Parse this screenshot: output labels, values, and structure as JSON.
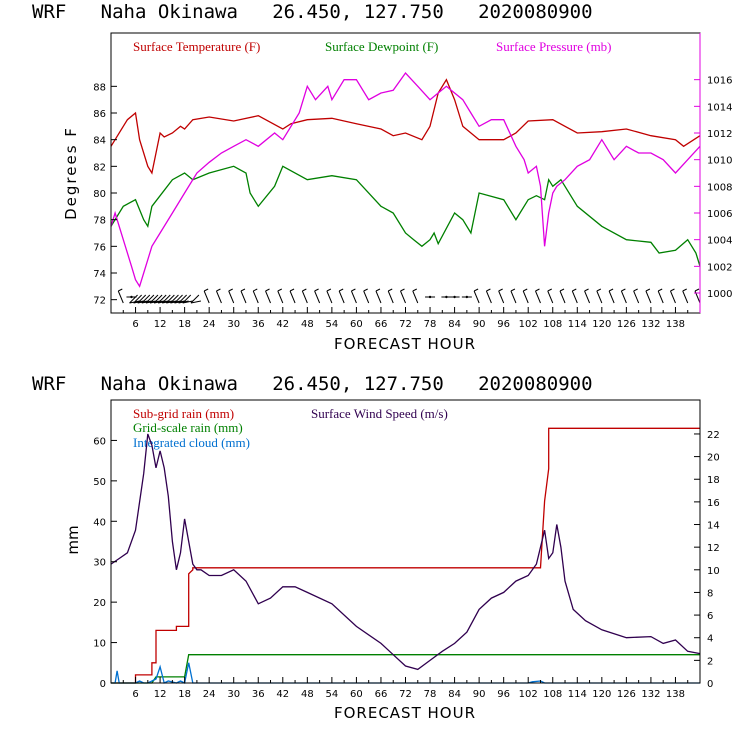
{
  "chart_data": [
    {
      "type": "line",
      "title": "WRF   Naha Okinawa   26.450, 127.750   2020080900",
      "xlabel": "FORECAST HOUR",
      "ylabel": "Degrees F",
      "xlim": [
        0,
        144
      ],
      "ylim": [
        71,
        92
      ],
      "y2lim": [
        998.5,
        1019.5
      ],
      "xticks": [
        6,
        12,
        18,
        24,
        30,
        36,
        42,
        48,
        54,
        60,
        66,
        72,
        78,
        84,
        90,
        96,
        102,
        108,
        114,
        120,
        126,
        132,
        138
      ],
      "yticks": [
        72,
        74,
        76,
        78,
        80,
        82,
        84,
        86,
        88
      ],
      "y2ticks": [
        1000,
        1002,
        1004,
        1006,
        1008,
        1010,
        1012,
        1014,
        1016
      ],
      "legend": [
        {
          "label": "Surface Temperature (F)",
          "color": "#c00000"
        },
        {
          "label": "Surface Dewpoint (F)",
          "color": "#008000"
        },
        {
          "label": "Surface Pressure (mb)",
          "color": "#e000e0"
        }
      ],
      "series": [
        {
          "name": "Surface Temperature (F)",
          "axis": "left",
          "color": "#c00000",
          "x": [
            0,
            3,
            4,
            6,
            7,
            9,
            10,
            12,
            13,
            15,
            17,
            18,
            20,
            24,
            30,
            36,
            42,
            44,
            48,
            54,
            60,
            66,
            69,
            72,
            76,
            78,
            80,
            82,
            84,
            86,
            90,
            96,
            99,
            102,
            108,
            114,
            120,
            126,
            132,
            138,
            140,
            144
          ],
          "y": [
            83.5,
            85,
            85.5,
            86,
            84,
            82,
            81.5,
            84.5,
            84.2,
            84.5,
            85,
            84.8,
            85.5,
            85.7,
            85.4,
            85.8,
            84.8,
            85.2,
            85.5,
            85.6,
            85.2,
            84.8,
            84.3,
            84.5,
            84,
            85,
            87.5,
            88.5,
            87,
            85,
            84,
            84,
            84.5,
            85.4,
            85.5,
            84.5,
            84.6,
            84.8,
            84.3,
            84,
            83.5,
            84.3
          ]
        },
        {
          "name": "Surface Dewpoint (F)",
          "axis": "left",
          "color": "#008000",
          "x": [
            0,
            3,
            6,
            8,
            9,
            10,
            12,
            15,
            18,
            20,
            24,
            30,
            33,
            34,
            36,
            40,
            42,
            48,
            54,
            60,
            66,
            69,
            72,
            74,
            76,
            78,
            79,
            80,
            84,
            86,
            88,
            90,
            96,
            99,
            100,
            102,
            104,
            106,
            107,
            108,
            110,
            114,
            120,
            126,
            132,
            134,
            138,
            141,
            143,
            144
          ],
          "y": [
            77.5,
            79,
            79.5,
            78,
            77.5,
            79,
            79.8,
            81,
            81.5,
            81,
            81.5,
            82,
            81.5,
            80,
            79,
            80.5,
            82,
            81,
            81.3,
            81,
            79,
            78.5,
            77,
            76.5,
            76,
            76.5,
            77,
            76.2,
            78.5,
            78,
            77,
            80,
            79.5,
            78,
            78.5,
            79.5,
            79.8,
            79.5,
            81,
            80.5,
            81,
            79,
            77.5,
            76.5,
            76.3,
            75.5,
            75.7,
            76.5,
            75.5,
            74.5
          ]
        },
        {
          "name": "Surface Pressure (mb)",
          "axis": "right",
          "color": "#e000e0",
          "x": [
            0,
            1,
            3,
            5,
            6,
            7,
            8,
            9,
            10,
            12,
            15,
            18,
            21,
            24,
            27,
            30,
            33,
            36,
            40,
            42,
            46,
            48,
            50,
            53,
            54,
            57,
            60,
            63,
            66,
            69,
            72,
            75,
            78,
            80,
            82,
            84,
            86,
            88,
            90,
            93,
            96,
            99,
            101,
            102,
            104,
            105,
            106,
            107,
            108,
            109,
            111,
            114,
            117,
            120,
            123,
            126,
            129,
            132,
            135,
            138,
            141,
            144
          ],
          "y": [
            1005,
            1006,
            1004,
            1002,
            1001,
            1000.5,
            1001.5,
            1002.5,
            1003.5,
            1004.5,
            1006,
            1007.5,
            1009,
            1009.8,
            1010.5,
            1011,
            1011.5,
            1011,
            1012,
            1011.5,
            1013.5,
            1015.5,
            1014.5,
            1015.5,
            1014.5,
            1016,
            1016,
            1014.5,
            1015,
            1015.2,
            1016.5,
            1015.5,
            1014.5,
            1015,
            1015.5,
            1015,
            1014.5,
            1013.5,
            1012.5,
            1013,
            1013,
            1011,
            1010,
            1009,
            1009.5,
            1008,
            1003.5,
            1006,
            1007.5,
            1008,
            1008.5,
            1009.5,
            1010,
            1011.5,
            1010,
            1011,
            1010.5,
            1010.5,
            1010,
            1009,
            1010,
            1011
          ]
        }
      ]
    },
    {
      "type": "line",
      "title": "WRF   Naha Okinawa   26.450, 127.750   2020080900",
      "xlabel": "FORECAST HOUR",
      "ylabel": "mm",
      "xlim": [
        0,
        144
      ],
      "ylim": [
        0,
        70
      ],
      "y2lim": [
        0,
        25
      ],
      "xticks": [
        6,
        12,
        18,
        24,
        30,
        36,
        42,
        48,
        54,
        60,
        66,
        72,
        78,
        84,
        90,
        96,
        102,
        108,
        114,
        120,
        126,
        132,
        138
      ],
      "yticks": [
        0,
        10,
        20,
        30,
        40,
        50,
        60
      ],
      "y2ticks": [
        0,
        2,
        4,
        6,
        8,
        10,
        12,
        14,
        16,
        18,
        20,
        22
      ],
      "legend": [
        {
          "label": "Sub-grid rain (mm)",
          "color": "#c00000"
        },
        {
          "label": "Surface Wind Speed (m/s)",
          "color": "#30004f"
        },
        {
          "label": "Grid-scale rain (mm)",
          "color": "#008000"
        },
        {
          "label": "Integrated cloud (mm)",
          "color": "#0070d0"
        }
      ],
      "series": [
        {
          "name": "Sub-grid rain (mm)",
          "axis": "left",
          "color": "#c00000",
          "x": [
            0,
            6,
            6,
            10,
            10,
            11,
            11,
            16,
            16,
            19,
            19,
            20,
            20,
            105,
            106,
            107,
            107,
            144
          ],
          "y": [
            0,
            0,
            2,
            2,
            5,
            5,
            13,
            13,
            14,
            14,
            27,
            28,
            28.5,
            28.5,
            45,
            53,
            63,
            63
          ]
        },
        {
          "name": "Grid-scale rain (mm)",
          "axis": "left",
          "color": "#008000",
          "x": [
            0,
            10,
            11,
            18,
            19,
            144
          ],
          "y": [
            0,
            0,
            1.5,
            1.5,
            7,
            7
          ]
        },
        {
          "name": "Integrated cloud (mm)",
          "axis": "left",
          "color": "#0070d0",
          "x": [
            0,
            1,
            1.5,
            2,
            6,
            7,
            8,
            9,
            11,
            12,
            13,
            14,
            16,
            17,
            18,
            19,
            20,
            50,
            102,
            103,
            105,
            106,
            144
          ],
          "y": [
            0,
            0,
            3,
            0,
            0,
            0.5,
            0,
            0,
            1,
            4,
            0,
            0.5,
            0,
            0.5,
            0,
            5,
            0,
            0,
            0,
            0.3,
            0.5,
            0,
            0
          ]
        },
        {
          "name": "Surface Wind Speed (m/s)",
          "axis": "right",
          "color": "#30004f",
          "x": [
            0,
            2,
            4,
            6,
            7,
            8,
            9,
            10,
            11,
            12,
            13,
            14,
            15,
            16,
            17,
            18,
            19,
            20,
            21,
            22,
            24,
            27,
            30,
            33,
            36,
            39,
            42,
            45,
            48,
            54,
            60,
            66,
            69,
            72,
            75,
            78,
            81,
            84,
            87,
            90,
            93,
            96,
            99,
            102,
            104,
            105,
            106,
            107,
            108,
            109,
            110,
            111,
            113,
            116,
            120,
            126,
            132,
            135,
            138,
            141,
            144
          ],
          "y": [
            10.5,
            11,
            11.5,
            13.5,
            16,
            18.5,
            22,
            21,
            19,
            20.5,
            19,
            16.5,
            12.5,
            10,
            11.5,
            14.5,
            12.5,
            10.5,
            10,
            10,
            9.5,
            9.5,
            10,
            9,
            7,
            7.5,
            8.5,
            8.5,
            8,
            7,
            5,
            3.5,
            2.5,
            1.5,
            1.2,
            2,
            2.8,
            3.5,
            4.5,
            6.5,
            7.5,
            8,
            9,
            9.5,
            10.5,
            12,
            13.5,
            11,
            11.5,
            14,
            12,
            9,
            6.5,
            5.5,
            4.7,
            4,
            4.1,
            3.5,
            3.8,
            2.8,
            2.6
          ]
        }
      ]
    }
  ],
  "wind_barbs": {
    "hours": [
      3,
      5,
      6,
      7,
      8,
      9,
      10,
      11,
      12,
      13,
      14,
      15,
      16,
      17,
      18,
      19,
      21,
      24,
      27,
      30,
      33,
      36,
      39,
      42,
      45,
      48,
      51,
      54,
      57,
      60,
      63,
      66,
      69,
      72,
      75,
      78,
      82,
      84,
      87,
      90,
      93,
      96,
      99,
      102,
      105,
      108,
      111,
      114,
      117,
      120,
      123,
      126,
      129,
      132,
      135,
      138,
      141,
      144
    ],
    "style": [
      "light",
      "calm",
      "dense",
      "dense",
      "dense",
      "dense",
      "dense",
      "dense",
      "dense",
      "dense",
      "dense",
      "dense",
      "dense",
      "dense",
      "dense",
      "dense",
      "dense",
      "light",
      "light",
      "light",
      "light",
      "light",
      "light",
      "light",
      "light",
      "light",
      "light",
      "light",
      "light",
      "light",
      "light",
      "light",
      "light",
      "light",
      "light",
      "calm",
      "calm",
      "calm",
      "calm",
      "light",
      "light",
      "light",
      "light",
      "light",
      "light",
      "light",
      "light",
      "light",
      "light",
      "light",
      "light",
      "light",
      "light",
      "light",
      "light",
      "light",
      "light",
      "light"
    ]
  }
}
